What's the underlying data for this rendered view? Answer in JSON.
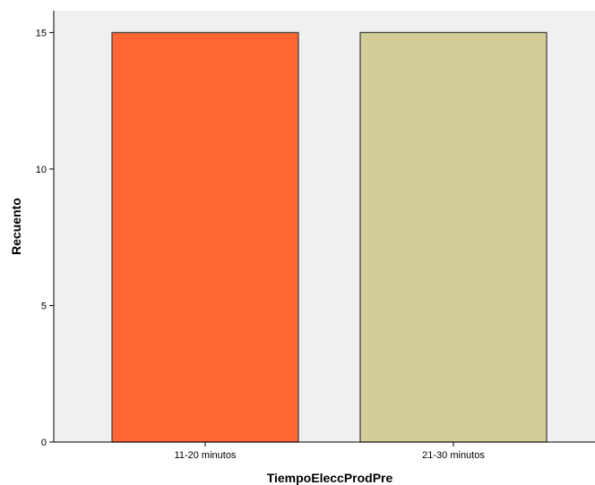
{
  "chart_data": {
    "type": "bar",
    "title": "",
    "xlabel": "TiempoEleccProdPre",
    "ylabel": "Recuento",
    "categories": [
      "11-20 minutos",
      "21-30 minutos"
    ],
    "values": [
      15,
      15
    ],
    "ylim": [
      0,
      15.8
    ],
    "yticks": [
      0,
      5,
      10,
      15
    ],
    "grid": false,
    "legend": "none",
    "colors": {
      "plot_background": "#f0f0f0",
      "bar_outline": "#3a3a3a",
      "bars": [
        "#ff6633",
        "#d3ce97"
      ]
    }
  }
}
